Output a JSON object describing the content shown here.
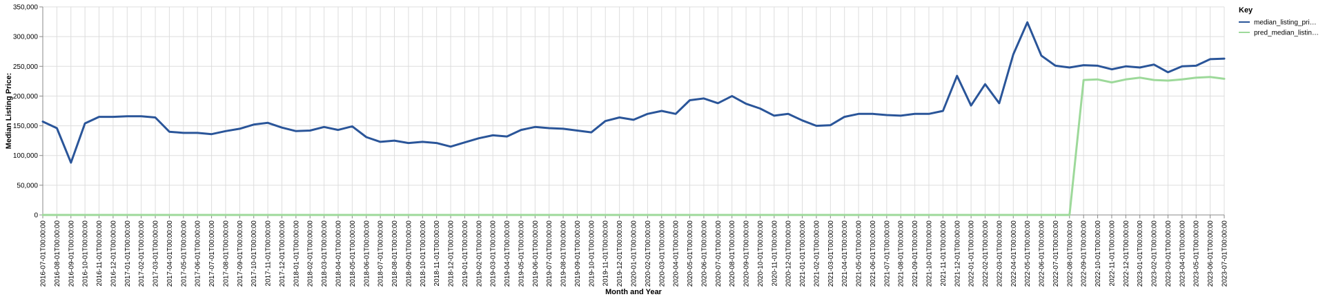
{
  "chart_data": {
    "type": "line",
    "xlabel": "Month and Year",
    "ylabel": "Median Listing Price:",
    "ylim": [
      0,
      350000
    ],
    "yticks": [
      0,
      50000,
      100000,
      150000,
      200000,
      250000,
      300000,
      350000
    ],
    "ytick_labels": [
      "0",
      "50,000",
      "100,000",
      "150,000",
      "200,000",
      "250,000",
      "300,000",
      "350,000"
    ],
    "grid": true,
    "legend": {
      "title": "Key",
      "placement": "top-right"
    },
    "x": [
      "2016-07-01T00:00:00",
      "2016-08-01T00:00:00",
      "2016-09-01T00:00:00",
      "2016-10-01T00:00:00",
      "2016-11-01T00:00:00",
      "2016-12-01T00:00:00",
      "2017-01-01T00:00:00",
      "2017-02-01T00:00:00",
      "2017-03-01T00:00:00",
      "2017-04-01T00:00:00",
      "2017-05-01T00:00:00",
      "2017-06-01T00:00:00",
      "2017-07-01T00:00:00",
      "2017-08-01T00:00:00",
      "2017-09-01T00:00:00",
      "2017-10-01T00:00:00",
      "2017-11-01T00:00:00",
      "2017-12-01T00:00:00",
      "2018-01-01T00:00:00",
      "2018-02-01T00:00:00",
      "2018-03-01T00:00:00",
      "2018-04-01T00:00:00",
      "2018-05-01T00:00:00",
      "2018-06-01T00:00:00",
      "2018-07-01T00:00:00",
      "2018-08-01T00:00:00",
      "2018-09-01T00:00:00",
      "2018-10-01T00:00:00",
      "2018-11-01T00:00:00",
      "2018-12-01T00:00:00",
      "2019-01-01T00:00:00",
      "2019-02-01T00:00:00",
      "2019-03-01T00:00:00",
      "2019-04-01T00:00:00",
      "2019-05-01T00:00:00",
      "2019-06-01T00:00:00",
      "2019-07-01T00:00:00",
      "2019-08-01T00:00:00",
      "2019-09-01T00:00:00",
      "2019-10-01T00:00:00",
      "2019-11-01T00:00:00",
      "2019-12-01T00:00:00",
      "2020-01-01T00:00:00",
      "2020-02-01T00:00:00",
      "2020-03-01T00:00:00",
      "2020-04-01T00:00:00",
      "2020-05-01T00:00:00",
      "2020-06-01T00:00:00",
      "2020-07-01T00:00:00",
      "2020-08-01T00:00:00",
      "2020-09-01T00:00:00",
      "2020-10-01T00:00:00",
      "2020-11-01T00:00:00",
      "2020-12-01T00:00:00",
      "2021-01-01T00:00:00",
      "2021-02-01T00:00:00",
      "2021-03-01T00:00:00",
      "2021-04-01T00:00:00",
      "2021-05-01T00:00:00",
      "2021-06-01T00:00:00",
      "2021-07-01T00:00:00",
      "2021-08-01T00:00:00",
      "2021-09-01T00:00:00",
      "2021-10-01T00:00:00",
      "2021-11-01T00:00:00",
      "2021-12-01T00:00:00",
      "2022-01-01T00:00:00",
      "2022-02-01T00:00:00",
      "2022-03-01T00:00:00",
      "2022-04-01T00:00:00",
      "2022-05-01T00:00:00",
      "2022-06-01T00:00:00",
      "2022-07-01T00:00:00",
      "2022-08-01T00:00:00",
      "2022-09-01T00:00:00",
      "2022-10-01T00:00:00",
      "2022-11-01T00:00:00",
      "2022-12-01T00:00:00",
      "2023-01-01T00:00:00",
      "2023-02-01T00:00:00",
      "2023-03-01T00:00:00",
      "2023-04-01T00:00:00",
      "2023-05-01T00:00:00",
      "2023-06-01T00:00:00",
      "2023-07-01T00:00:00"
    ],
    "series": [
      {
        "name": "median_listing_pri…",
        "color": "#2a5599",
        "values": [
          157000,
          146000,
          88000,
          154000,
          165000,
          165000,
          166000,
          166000,
          164000,
          140000,
          138000,
          138000,
          136000,
          141000,
          145000,
          152000,
          155000,
          147000,
          141000,
          142000,
          148000,
          143000,
          149000,
          131000,
          123000,
          125000,
          121000,
          123000,
          121000,
          115000,
          122000,
          129000,
          134000,
          132000,
          143000,
          148000,
          146000,
          145000,
          142000,
          139000,
          158000,
          164000,
          160000,
          170000,
          175000,
          170000,
          193000,
          196000,
          188000,
          200000,
          187000,
          179000,
          167000,
          170000,
          159000,
          150000,
          151000,
          165000,
          170000,
          170000,
          168000,
          167000,
          170000,
          170000,
          175000,
          234000,
          184000,
          220000,
          188000,
          270000,
          324000,
          268000,
          251000,
          248000,
          252000,
          251000,
          245000,
          250000,
          248000,
          253000,
          240000,
          250000,
          251000,
          262000,
          263000
        ]
      },
      {
        "name": "pred_median_listin…",
        "color": "#9dd99a",
        "values": [
          0,
          0,
          0,
          0,
          0,
          0,
          0,
          0,
          0,
          0,
          0,
          0,
          0,
          0,
          0,
          0,
          0,
          0,
          0,
          0,
          0,
          0,
          0,
          0,
          0,
          0,
          0,
          0,
          0,
          0,
          0,
          0,
          0,
          0,
          0,
          0,
          0,
          0,
          0,
          0,
          0,
          0,
          0,
          0,
          0,
          0,
          0,
          0,
          0,
          0,
          0,
          0,
          0,
          0,
          0,
          0,
          0,
          0,
          0,
          0,
          0,
          0,
          0,
          0,
          0,
          0,
          0,
          0,
          0,
          0,
          0,
          0,
          0,
          0,
          227000,
          228000,
          223000,
          228000,
          231000,
          227000,
          226000,
          228000,
          231000,
          232000,
          229000
        ]
      }
    ]
  }
}
